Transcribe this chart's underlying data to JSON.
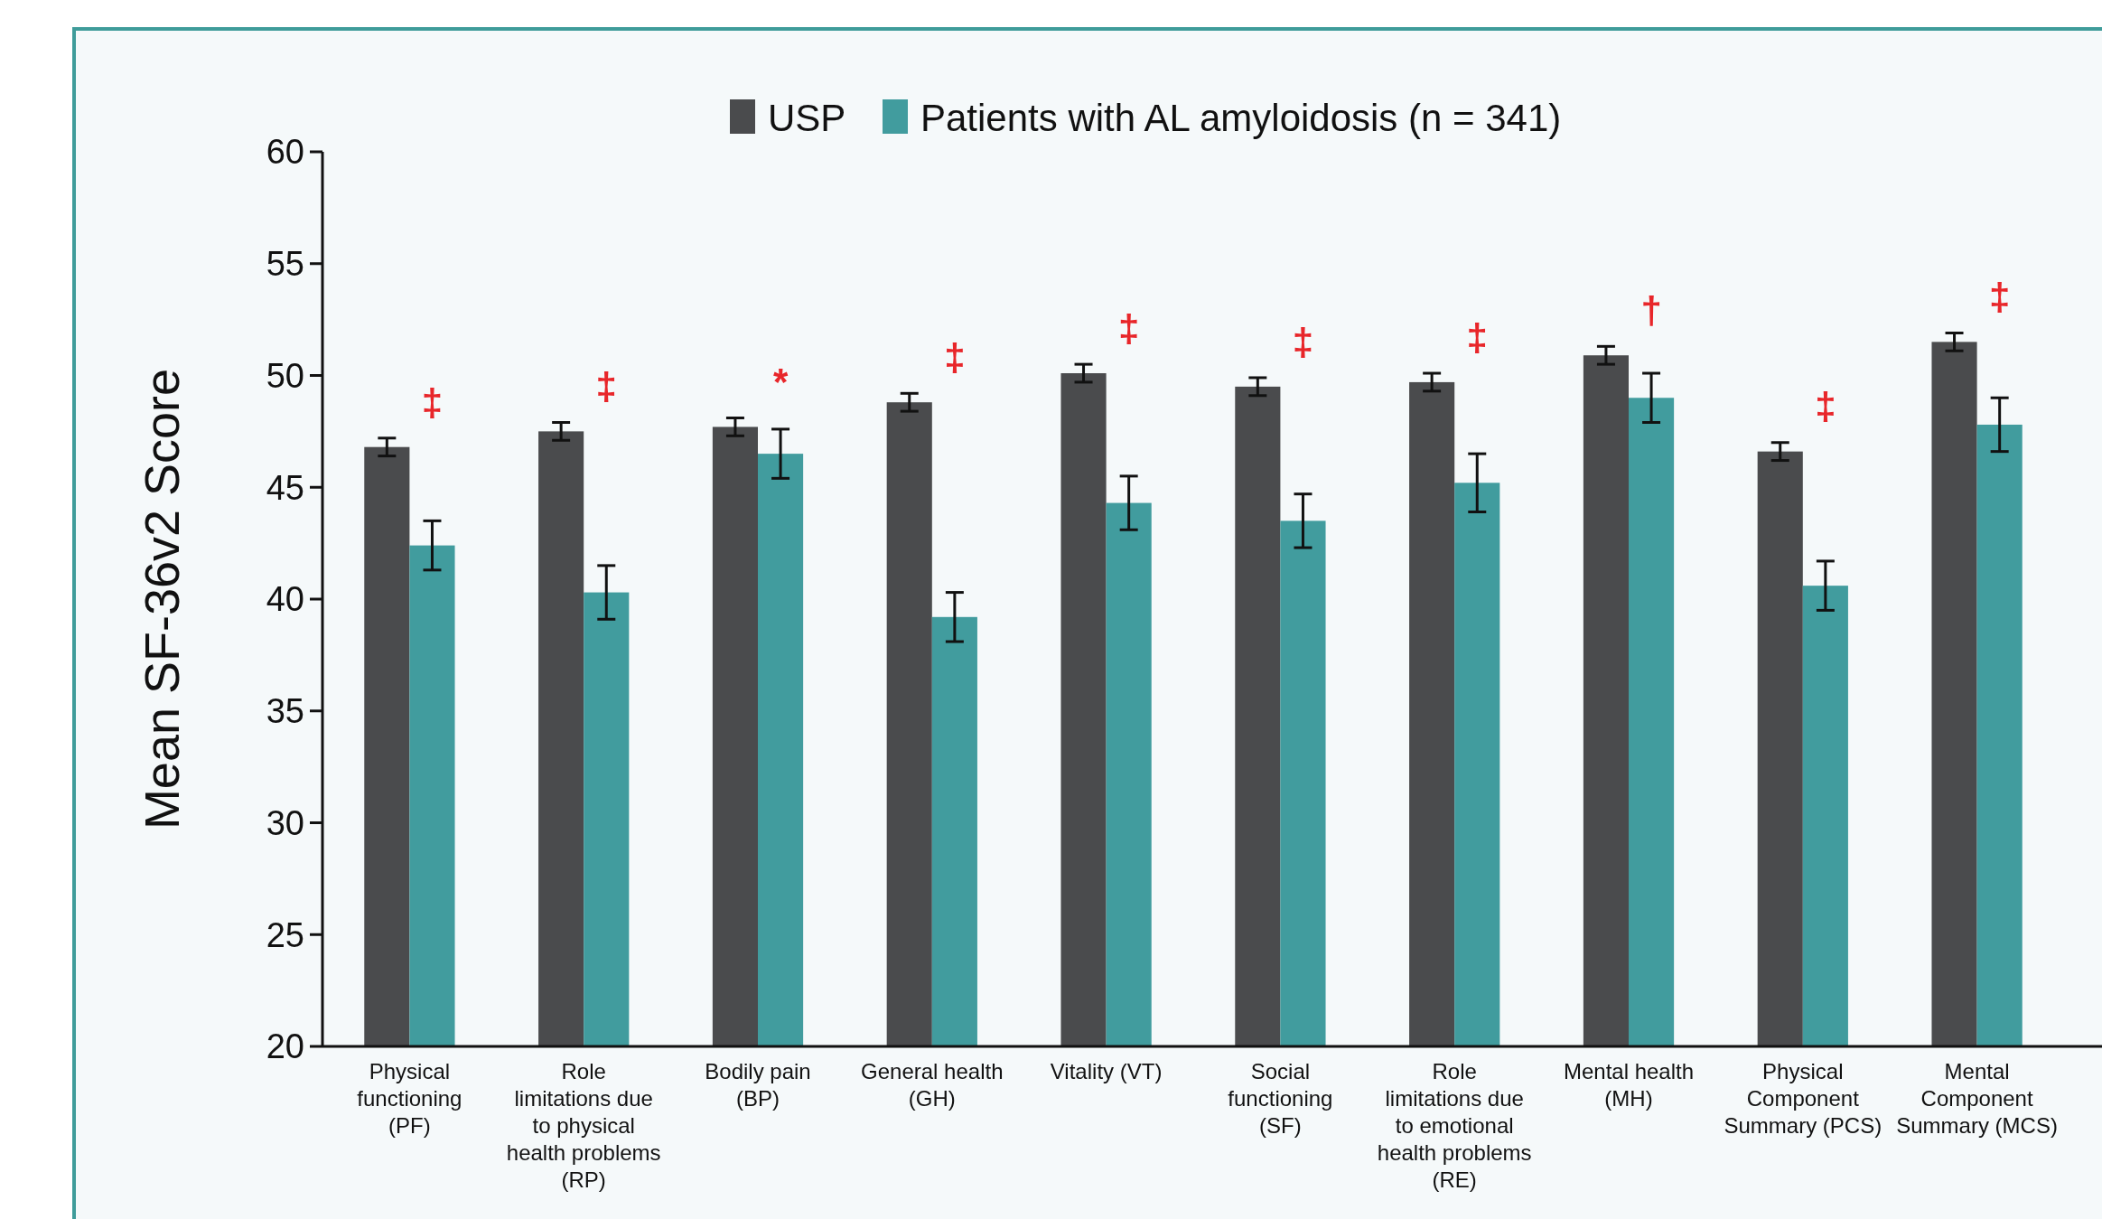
{
  "chart_data": {
    "type": "bar",
    "ylabel": "Mean SF-36v2 Score",
    "categories": [
      "Physical functioning (PF)",
      "Role limitations due to physical health problems (RP)",
      "Bodily pain (BP)",
      "General health (GH)",
      "Vitality (VT)",
      "Social functioning (SF)",
      "Role limitations due to emotional health problems (RE)",
      "Mental health (MH)",
      "Physical Component Summary (PCS)",
      "Mental Component Summary (MCS)"
    ],
    "series": [
      {
        "name": "USP",
        "color": "#4a4b4d",
        "values": [
          46.8,
          47.5,
          47.7,
          48.8,
          50.1,
          49.5,
          49.7,
          50.9,
          46.6,
          51.5
        ],
        "errors": [
          0.4,
          0.4,
          0.4,
          0.4,
          0.4,
          0.4,
          0.4,
          0.4,
          0.4,
          0.4
        ]
      },
      {
        "name": "Patients with AL amyloidosis (n = 341)",
        "color": "#419c9e",
        "values": [
          42.4,
          40.3,
          46.5,
          39.2,
          44.3,
          43.5,
          45.2,
          49.0,
          40.6,
          47.8
        ],
        "errors": [
          1.1,
          1.2,
          1.1,
          1.1,
          1.2,
          1.2,
          1.3,
          1.1,
          1.1,
          1.2
        ]
      }
    ],
    "ylim": [
      20,
      60
    ],
    "yticks": [
      20,
      25,
      30,
      35,
      40,
      45,
      50,
      55,
      60
    ],
    "grid": false,
    "legend": "top",
    "annotations": [
      "‡",
      "‡",
      "*",
      "‡",
      "‡",
      "‡",
      "‡",
      "†",
      "‡",
      "‡"
    ]
  }
}
